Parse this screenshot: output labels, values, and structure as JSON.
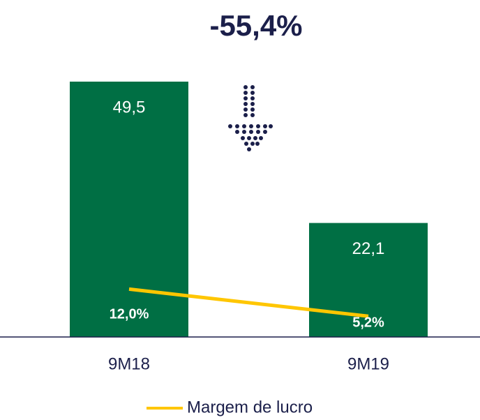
{
  "chart_data": {
    "type": "bar",
    "title": "-55,4%",
    "categories": [
      "9M18",
      "9M19"
    ],
    "values": [
      49.5,
      22.1
    ],
    "value_labels": [
      "49,5",
      "22,1"
    ],
    "color": "#006f44",
    "ylim": [
      0,
      51.8
    ],
    "y2lim": [
      0,
      67
    ],
    "series": [
      {
        "name": "Margem de lucro",
        "type": "line",
        "axis": "y2",
        "color": "#ffc600",
        "values": [
          12.0,
          5.2
        ],
        "value_labels": [
          "12,0%",
          "5,2%"
        ]
      }
    ]
  }
}
